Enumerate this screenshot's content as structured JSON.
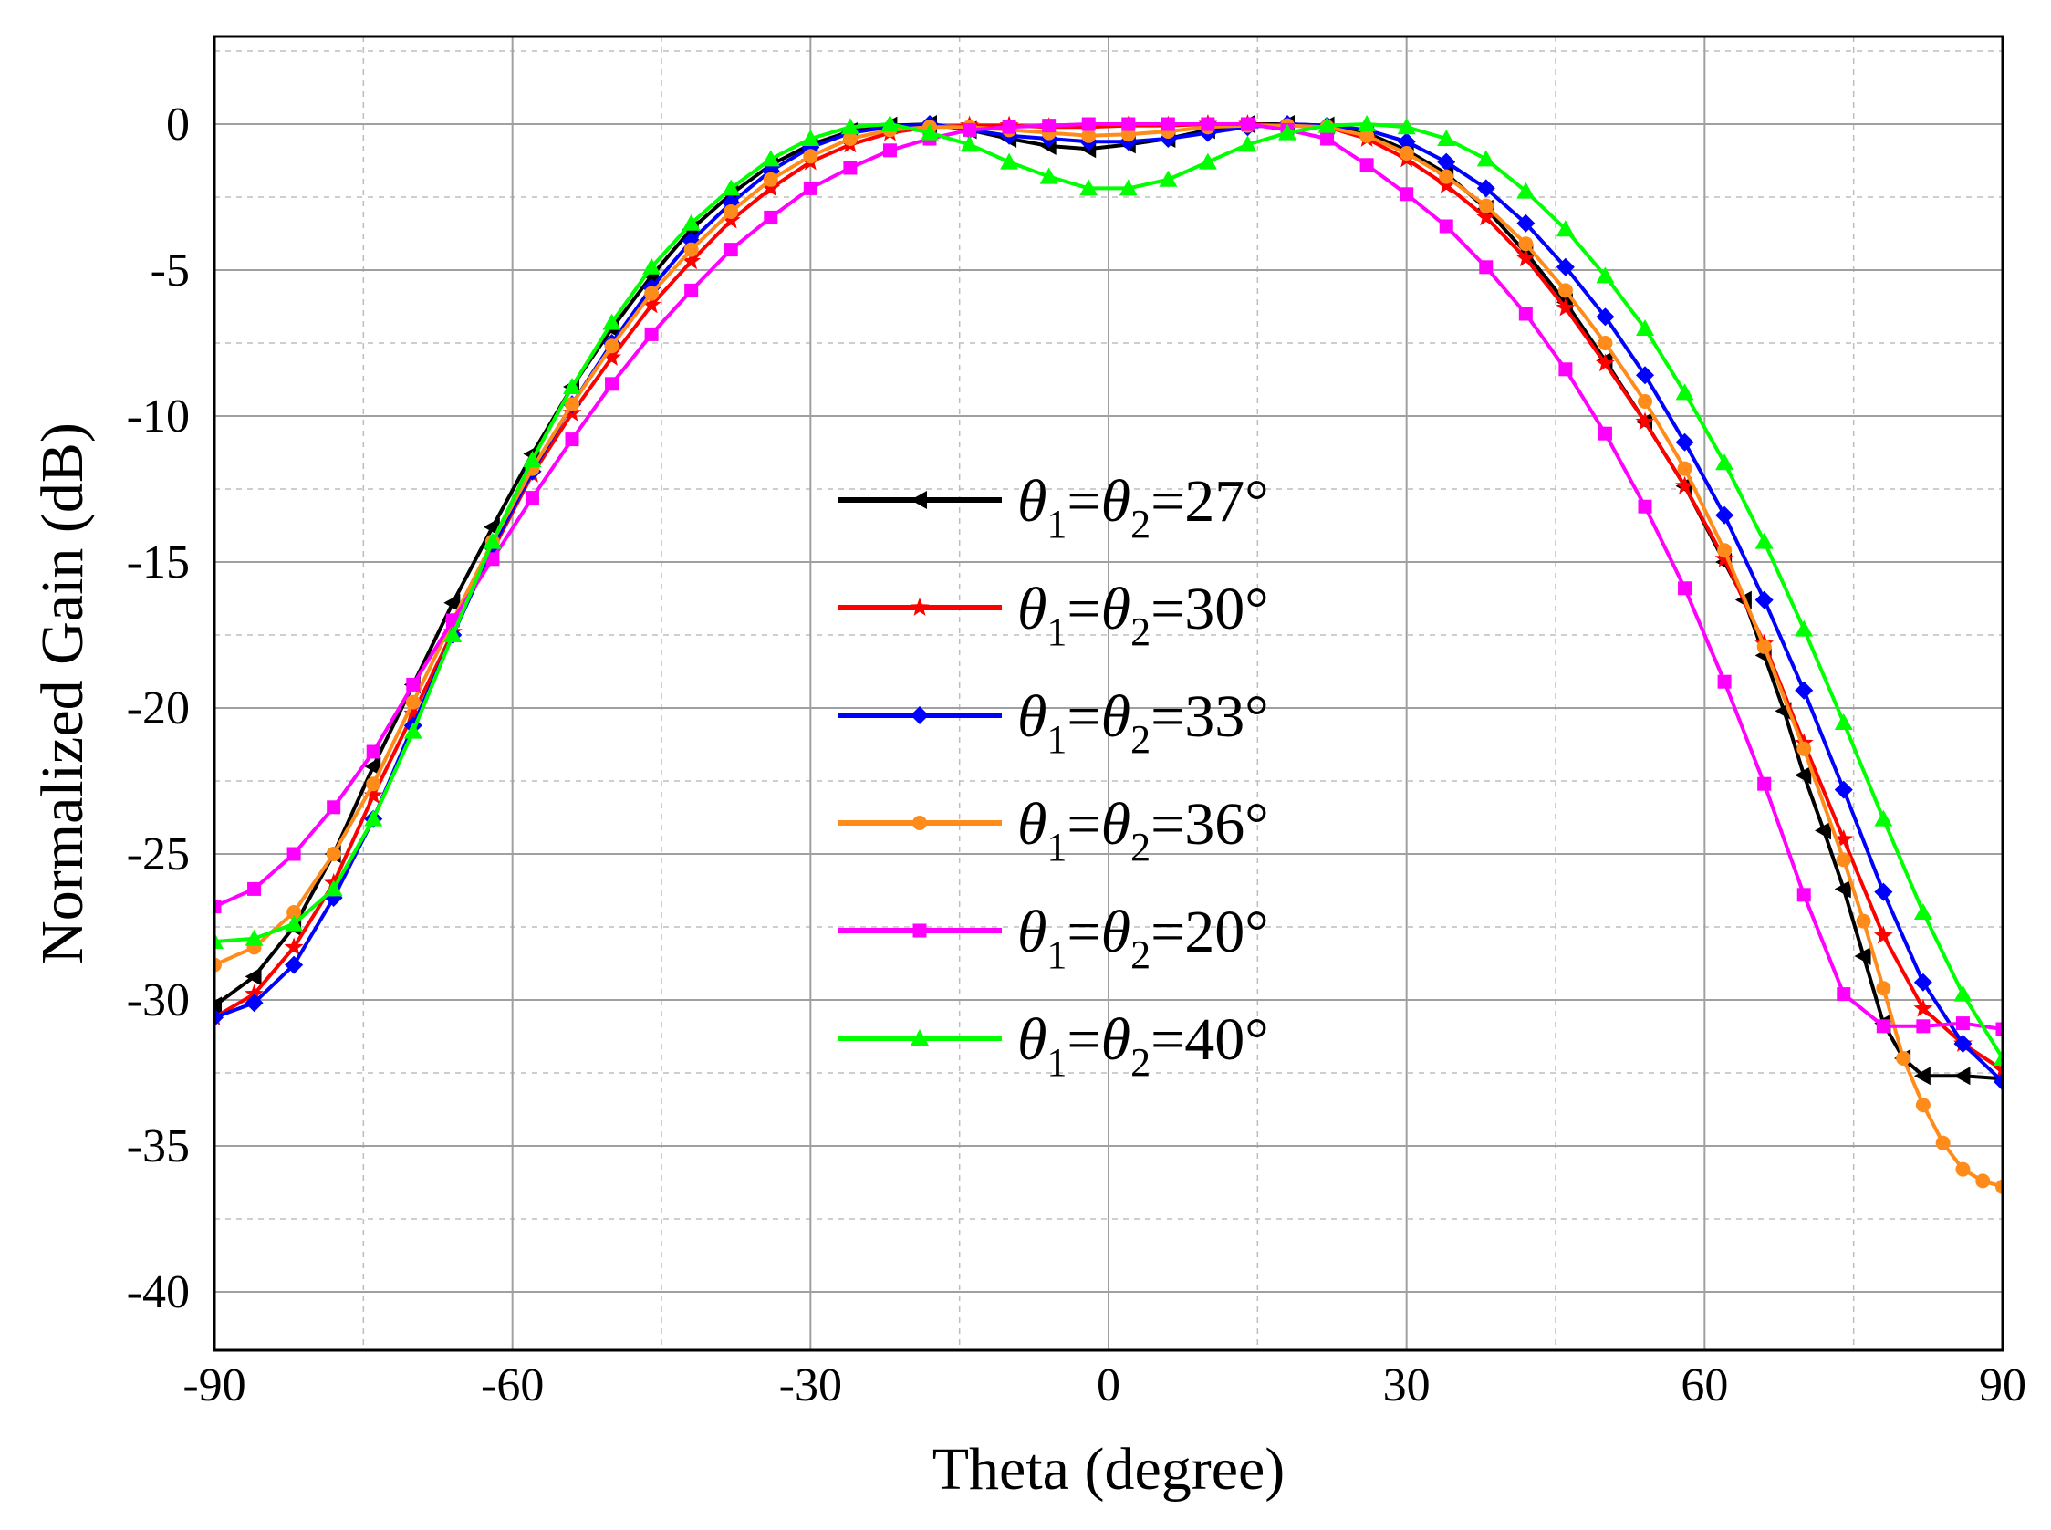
{
  "chart_data": {
    "type": "line",
    "title": "",
    "xlabel": "Theta (degree)",
    "ylabel": "Normalized Gain (dB)",
    "xlim": [
      -90,
      90
    ],
    "ylim": [
      -42,
      3
    ],
    "x_ticks": [
      "-90",
      "-60",
      "-30",
      "0",
      "30",
      "60",
      "90"
    ],
    "y_ticks": [
      "0",
      "-5",
      "-10",
      "-15",
      "-20",
      "-25",
      "-30",
      "-35",
      "-40"
    ],
    "grid": true,
    "legend_position": "center",
    "series": [
      {
        "name": "θ1=θ2=27°",
        "label": {
          "theta": "θ",
          "sub1": "1",
          "eq": "=",
          "sub2": "2",
          "value": "=27°"
        },
        "color": "#000000",
        "marker": "triangle-left",
        "points": [
          [
            -90,
            -30.2
          ],
          [
            -86,
            -29.2
          ],
          [
            -82,
            -27.5
          ],
          [
            -78,
            -25
          ],
          [
            -74,
            -22
          ],
          [
            -70,
            -19.2
          ],
          [
            -66,
            -16.4
          ],
          [
            -62,
            -13.8
          ],
          [
            -58,
            -11.3
          ],
          [
            -54,
            -9
          ],
          [
            -50,
            -7
          ],
          [
            -46,
            -5.2
          ],
          [
            -42,
            -3.6
          ],
          [
            -38,
            -2.4
          ],
          [
            -34,
            -1.4
          ],
          [
            -30,
            -0.7
          ],
          [
            -26,
            -0.25
          ],
          [
            -22,
            -0.05
          ],
          [
            -18,
            0
          ],
          [
            -14,
            -0.2
          ],
          [
            -10,
            -0.5
          ],
          [
            -6,
            -0.75
          ],
          [
            -2,
            -0.85
          ],
          [
            2,
            -0.7
          ],
          [
            6,
            -0.5
          ],
          [
            10,
            -0.2
          ],
          [
            14,
            0
          ],
          [
            18,
            0
          ],
          [
            22,
            -0.05
          ],
          [
            26,
            -0.3
          ],
          [
            30,
            -0.9
          ],
          [
            34,
            -1.7
          ],
          [
            38,
            -2.9
          ],
          [
            42,
            -4.4
          ],
          [
            46,
            -6.1
          ],
          [
            50,
            -8.1
          ],
          [
            54,
            -10.2
          ],
          [
            58,
            -12.4
          ],
          [
            62,
            -15
          ],
          [
            64,
            -16.3
          ],
          [
            66,
            -18.2
          ],
          [
            68,
            -20.1
          ],
          [
            70,
            -22.3
          ],
          [
            72,
            -24.2
          ],
          [
            74,
            -26.2
          ],
          [
            76,
            -28.5
          ],
          [
            78,
            -30.8
          ],
          [
            80,
            -32
          ],
          [
            82,
            -32.6
          ],
          [
            86,
            -32.6
          ],
          [
            90,
            -32.7
          ]
        ]
      },
      {
        "name": "θ1=θ2=30°",
        "label": {
          "theta": "θ",
          "sub1": "1",
          "eq": "=",
          "sub2": "2",
          "value": "=30°"
        },
        "color": "#ff0000",
        "marker": "star",
        "points": [
          [
            -90,
            -30.6
          ],
          [
            -86,
            -29.8
          ],
          [
            -82,
            -28.2
          ],
          [
            -78,
            -26
          ],
          [
            -74,
            -23
          ],
          [
            -70,
            -20.2
          ],
          [
            -66,
            -17.4
          ],
          [
            -62,
            -14.6
          ],
          [
            -58,
            -12
          ],
          [
            -54,
            -9.9
          ],
          [
            -50,
            -8
          ],
          [
            -46,
            -6.2
          ],
          [
            -42,
            -4.7
          ],
          [
            -38,
            -3.3
          ],
          [
            -34,
            -2.2
          ],
          [
            -30,
            -1.3
          ],
          [
            -26,
            -0.7
          ],
          [
            -22,
            -0.3
          ],
          [
            -18,
            -0.1
          ],
          [
            -14,
            -0.05
          ],
          [
            -10,
            -0.05
          ],
          [
            -6,
            -0.1
          ],
          [
            -2,
            -0.1
          ],
          [
            2,
            -0.05
          ],
          [
            6,
            -0.05
          ],
          [
            10,
            0
          ],
          [
            14,
            0
          ],
          [
            18,
            -0.05
          ],
          [
            22,
            -0.1
          ],
          [
            26,
            -0.5
          ],
          [
            30,
            -1.2
          ],
          [
            34,
            -2.1
          ],
          [
            38,
            -3.2
          ],
          [
            42,
            -4.6
          ],
          [
            46,
            -6.3
          ],
          [
            50,
            -8.2
          ],
          [
            54,
            -10.2
          ],
          [
            58,
            -12.4
          ],
          [
            62,
            -14.9
          ],
          [
            66,
            -17.8
          ],
          [
            70,
            -21.2
          ],
          [
            74,
            -24.5
          ],
          [
            78,
            -27.8
          ],
          [
            82,
            -30.3
          ],
          [
            86,
            -31.5
          ],
          [
            90,
            -32.4
          ]
        ]
      },
      {
        "name": "θ1=θ2=33°",
        "label": {
          "theta": "θ",
          "sub1": "1",
          "eq": "=",
          "sub2": "2",
          "value": "=33°"
        },
        "color": "#0000ff",
        "marker": "diamond",
        "points": [
          [
            -90,
            -30.6
          ],
          [
            -86,
            -30.1
          ],
          [
            -82,
            -28.8
          ],
          [
            -78,
            -26.5
          ],
          [
            -74,
            -23.8
          ],
          [
            -70,
            -20.6
          ],
          [
            -66,
            -17.5
          ],
          [
            -62,
            -14.5
          ],
          [
            -58,
            -11.9
          ],
          [
            -54,
            -9.6
          ],
          [
            -50,
            -7.5
          ],
          [
            -46,
            -5.6
          ],
          [
            -42,
            -4
          ],
          [
            -38,
            -2.7
          ],
          [
            -34,
            -1.6
          ],
          [
            -30,
            -0.8
          ],
          [
            -26,
            -0.3
          ],
          [
            -22,
            -0.1
          ],
          [
            -18,
            0
          ],
          [
            -14,
            -0.2
          ],
          [
            -10,
            -0.4
          ],
          [
            -6,
            -0.5
          ],
          [
            -2,
            -0.6
          ],
          [
            2,
            -0.6
          ],
          [
            6,
            -0.5
          ],
          [
            10,
            -0.3
          ],
          [
            14,
            -0.1
          ],
          [
            18,
            0
          ],
          [
            22,
            -0.05
          ],
          [
            26,
            -0.2
          ],
          [
            30,
            -0.6
          ],
          [
            34,
            -1.3
          ],
          [
            38,
            -2.2
          ],
          [
            42,
            -3.4
          ],
          [
            46,
            -4.9
          ],
          [
            50,
            -6.6
          ],
          [
            54,
            -8.6
          ],
          [
            58,
            -10.9
          ],
          [
            62,
            -13.4
          ],
          [
            66,
            -16.3
          ],
          [
            70,
            -19.4
          ],
          [
            74,
            -22.8
          ],
          [
            78,
            -26.3
          ],
          [
            82,
            -29.4
          ],
          [
            86,
            -31.5
          ],
          [
            90,
            -32.8
          ]
        ]
      },
      {
        "name": "θ1=θ2=36°",
        "label": {
          "theta": "θ",
          "sub1": "1",
          "eq": "=",
          "sub2": "2",
          "value": "=36°"
        },
        "color": "#ff8c1a",
        "marker": "circle",
        "points": [
          [
            -90,
            -28.8
          ],
          [
            -86,
            -28.2
          ],
          [
            -82,
            -27
          ],
          [
            -78,
            -25
          ],
          [
            -74,
            -22.6
          ],
          [
            -70,
            -19.8
          ],
          [
            -66,
            -17
          ],
          [
            -62,
            -14.3
          ],
          [
            -58,
            -11.8
          ],
          [
            -54,
            -9.6
          ],
          [
            -50,
            -7.6
          ],
          [
            -46,
            -5.8
          ],
          [
            -42,
            -4.3
          ],
          [
            -38,
            -3
          ],
          [
            -34,
            -1.9
          ],
          [
            -30,
            -1.1
          ],
          [
            -26,
            -0.5
          ],
          [
            -22,
            -0.2
          ],
          [
            -18,
            -0.1
          ],
          [
            -14,
            -0.1
          ],
          [
            -10,
            -0.2
          ],
          [
            -6,
            -0.3
          ],
          [
            -2,
            -0.4
          ],
          [
            2,
            -0.35
          ],
          [
            6,
            -0.25
          ],
          [
            10,
            -0.1
          ],
          [
            14,
            -0.05
          ],
          [
            18,
            -0.05
          ],
          [
            22,
            -0.1
          ],
          [
            26,
            -0.4
          ],
          [
            30,
            -1
          ],
          [
            34,
            -1.8
          ],
          [
            38,
            -2.8
          ],
          [
            42,
            -4.1
          ],
          [
            46,
            -5.7
          ],
          [
            50,
            -7.5
          ],
          [
            54,
            -9.5
          ],
          [
            58,
            -11.8
          ],
          [
            62,
            -14.6
          ],
          [
            66,
            -17.9
          ],
          [
            70,
            -21.4
          ],
          [
            74,
            -25.2
          ],
          [
            76,
            -27.3
          ],
          [
            78,
            -29.6
          ],
          [
            80,
            -32
          ],
          [
            82,
            -33.6
          ],
          [
            84,
            -34.9
          ],
          [
            86,
            -35.8
          ],
          [
            88,
            -36.2
          ],
          [
            90,
            -36.4
          ]
        ]
      },
      {
        "name": "θ1=θ2=20°",
        "label": {
          "theta": "θ",
          "sub1": "1",
          "eq": "=",
          "sub2": "2",
          "value": "=20°"
        },
        "color": "#ff00ff",
        "marker": "square",
        "points": [
          [
            -90,
            -26.8
          ],
          [
            -86,
            -26.2
          ],
          [
            -82,
            -25
          ],
          [
            -78,
            -23.4
          ],
          [
            -74,
            -21.5
          ],
          [
            -70,
            -19.2
          ],
          [
            -66,
            -17
          ],
          [
            -62,
            -14.9
          ],
          [
            -58,
            -12.8
          ],
          [
            -54,
            -10.8
          ],
          [
            -50,
            -8.9
          ],
          [
            -46,
            -7.2
          ],
          [
            -42,
            -5.7
          ],
          [
            -38,
            -4.3
          ],
          [
            -34,
            -3.2
          ],
          [
            -30,
            -2.2
          ],
          [
            -26,
            -1.5
          ],
          [
            -22,
            -0.9
          ],
          [
            -18,
            -0.5
          ],
          [
            -14,
            -0.2
          ],
          [
            -10,
            -0.1
          ],
          [
            -6,
            -0.05
          ],
          [
            -2,
            0
          ],
          [
            2,
            0
          ],
          [
            6,
            0
          ],
          [
            10,
            0
          ],
          [
            14,
            0
          ],
          [
            18,
            -0.2
          ],
          [
            22,
            -0.5
          ],
          [
            26,
            -1.4
          ],
          [
            30,
            -2.4
          ],
          [
            34,
            -3.5
          ],
          [
            38,
            -4.9
          ],
          [
            42,
            -6.5
          ],
          [
            46,
            -8.4
          ],
          [
            50,
            -10.6
          ],
          [
            54,
            -13.1
          ],
          [
            58,
            -15.9
          ],
          [
            62,
            -19.1
          ],
          [
            66,
            -22.6
          ],
          [
            70,
            -26.4
          ],
          [
            74,
            -29.8
          ],
          [
            78,
            -30.9
          ],
          [
            82,
            -30.9
          ],
          [
            86,
            -30.8
          ],
          [
            90,
            -31
          ]
        ]
      },
      {
        "name": "θ1=θ2=40°",
        "label": {
          "theta": "θ",
          "sub1": "1",
          "eq": "=",
          "sub2": "2",
          "value": "=40°"
        },
        "color": "#00ff00",
        "marker": "triangle-up",
        "points": [
          [
            -90,
            -28
          ],
          [
            -86,
            -27.9
          ],
          [
            -82,
            -27.4
          ],
          [
            -78,
            -26.2
          ],
          [
            -74,
            -23.8
          ],
          [
            -70,
            -20.8
          ],
          [
            -66,
            -17.5
          ],
          [
            -62,
            -14.3
          ],
          [
            -58,
            -11.5
          ],
          [
            -54,
            -9
          ],
          [
            -50,
            -6.8
          ],
          [
            -46,
            -4.9
          ],
          [
            -42,
            -3.4
          ],
          [
            -38,
            -2.2
          ],
          [
            -34,
            -1.2
          ],
          [
            -30,
            -0.5
          ],
          [
            -26,
            -0.1
          ],
          [
            -22,
            0
          ],
          [
            -18,
            -0.3
          ],
          [
            -14,
            -0.7
          ],
          [
            -10,
            -1.3
          ],
          [
            -6,
            -1.8
          ],
          [
            -2,
            -2.2
          ],
          [
            2,
            -2.2
          ],
          [
            6,
            -1.9
          ],
          [
            10,
            -1.3
          ],
          [
            14,
            -0.7
          ],
          [
            18,
            -0.3
          ],
          [
            22,
            -0.05
          ],
          [
            26,
            0
          ],
          [
            30,
            -0.1
          ],
          [
            34,
            -0.5
          ],
          [
            38,
            -1.2
          ],
          [
            42,
            -2.3
          ],
          [
            46,
            -3.6
          ],
          [
            50,
            -5.2
          ],
          [
            54,
            -7
          ],
          [
            58,
            -9.2
          ],
          [
            62,
            -11.6
          ],
          [
            66,
            -14.3
          ],
          [
            70,
            -17.3
          ],
          [
            74,
            -20.5
          ],
          [
            78,
            -23.8
          ],
          [
            82,
            -27
          ],
          [
            86,
            -29.8
          ],
          [
            90,
            -32
          ]
        ]
      }
    ]
  }
}
